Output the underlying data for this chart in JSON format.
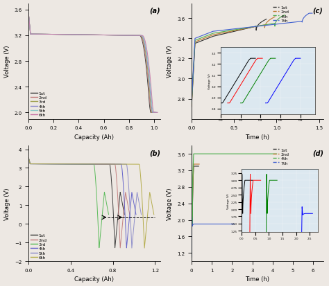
{
  "panel_a": {
    "label": "(a)",
    "xlabel": "Capacity (Ah)",
    "ylabel": "Voltage (V)",
    "ylim": [
      1.9,
      3.7
    ],
    "xlim": [
      0.0,
      1.05
    ],
    "yticks": [
      2.0,
      2.4,
      2.8,
      3.2,
      3.6
    ],
    "xticks": [
      0.0,
      0.2,
      0.4,
      0.6,
      0.8,
      1.0
    ],
    "legend": [
      "1st",
      "2nd",
      "3rd",
      "4th",
      "5th",
      "6th"
    ],
    "colors": [
      "#303030",
      "#c07878",
      "#a0a050",
      "#8888cc",
      "#88c8c8",
      "#c878a8"
    ]
  },
  "panel_b": {
    "label": "(b)",
    "xlabel": "Capacity (Ah)",
    "ylabel": "Voltage (V)",
    "ylim": [
      -2.0,
      4.2
    ],
    "xlim": [
      0.0,
      1.25
    ],
    "yticks": [
      -2,
      -1,
      0,
      1,
      2,
      3,
      4
    ],
    "xticks": [
      0.0,
      0.4,
      0.8,
      1.2
    ],
    "legend": [
      "1st",
      "2nd",
      "3rd",
      "4th",
      "5th",
      "6th"
    ],
    "colors": [
      "#303030",
      "#c07878",
      "#50b850",
      "#5858c8",
      "#8888c8",
      "#b0a840"
    ]
  },
  "panel_c": {
    "label": "(c)",
    "xlabel": "Time (h)",
    "ylabel": "Voltage (V)",
    "ylim": [
      2.6,
      3.75
    ],
    "xlim": [
      0.0,
      1.55
    ],
    "yticks": [
      2.8,
      3.0,
      3.2,
      3.4,
      3.6
    ],
    "xticks": [
      0.0,
      0.5,
      1.0,
      1.5
    ],
    "legend": [
      "1st",
      "2nd",
      "4th",
      "7th"
    ],
    "colors": [
      "#303030",
      "#c07830",
      "#50b050",
      "#4060d0"
    ]
  },
  "panel_d": {
    "label": "(d)",
    "xlabel": "Time (h)",
    "ylabel": "Voltage (V)",
    "ylim": [
      1.0,
      3.8
    ],
    "xlim": [
      0.0,
      6.5
    ],
    "yticks": [
      1.2,
      1.6,
      2.0,
      2.4,
      2.8,
      3.2,
      3.6
    ],
    "xticks": [
      0,
      1,
      2,
      3,
      4,
      5,
      6
    ],
    "legend": [
      "1st",
      "2nd",
      "4th",
      "7th"
    ],
    "colors": [
      "#303030",
      "#c07830",
      "#50b050",
      "#4060d0"
    ]
  },
  "bg_color": "#ede8e3"
}
